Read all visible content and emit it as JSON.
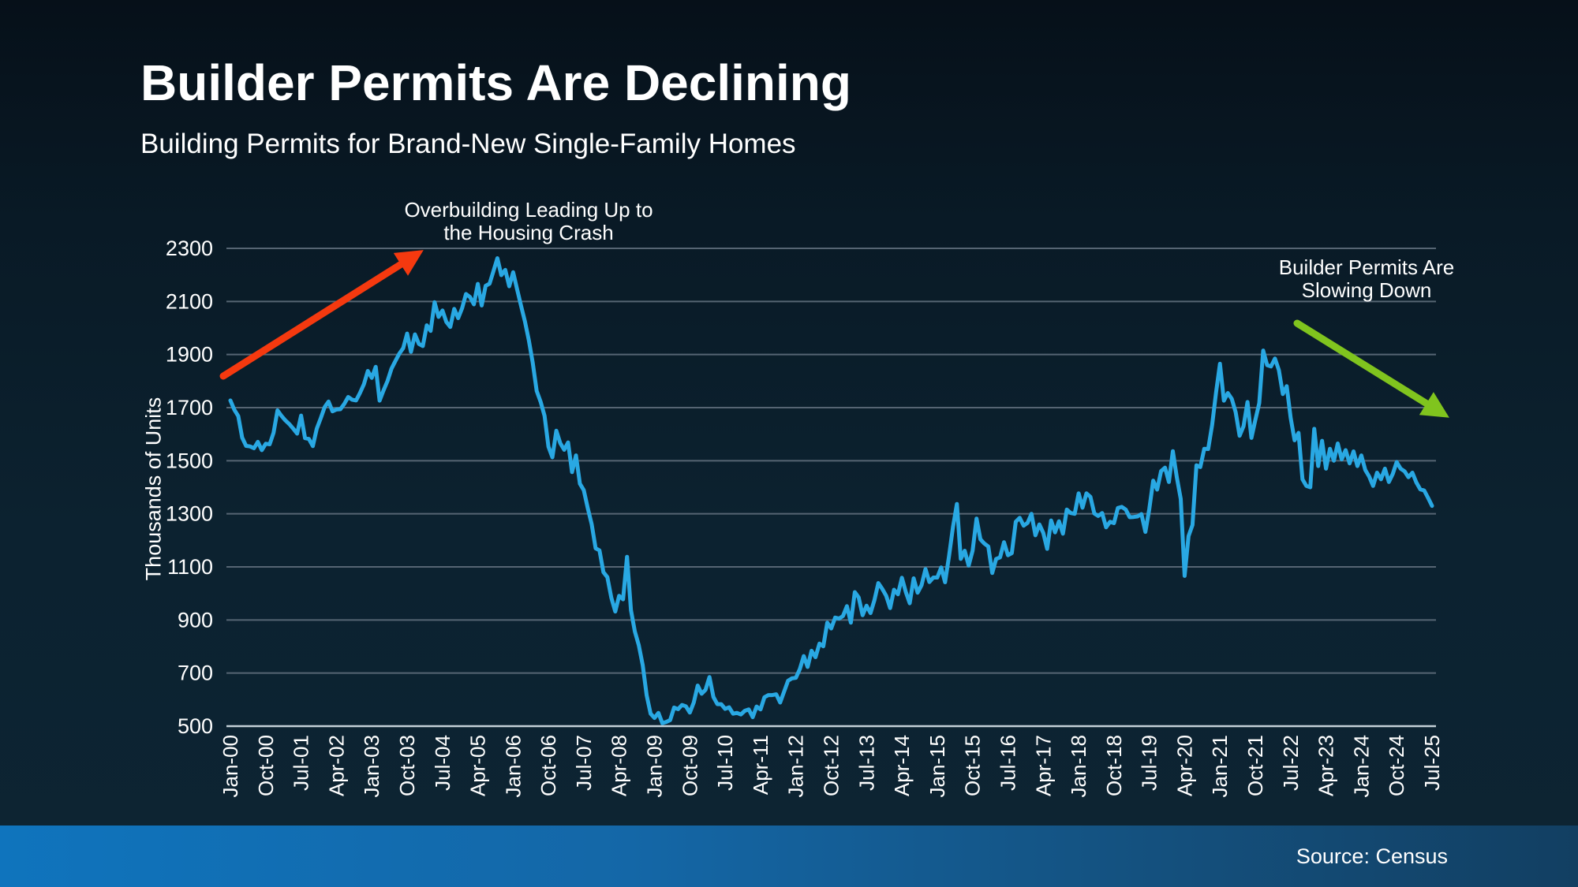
{
  "slide": {
    "title": "Builder Permits Are Declining",
    "subtitle": "Building Permits for Brand-New Single-Family Homes"
  },
  "footer": {
    "source": "Source: Census"
  },
  "annotations": {
    "overbuilding": {
      "line1": "Overbuilding Leading Up to",
      "line2": "the Housing Crash",
      "arrow_color": "#f5390f",
      "arrow_direction": "up-right"
    },
    "slowing": {
      "line1": "Builder Permits Are",
      "line2": "Slowing Down",
      "arrow_color": "#80c41e",
      "arrow_direction": "down-right"
    }
  },
  "colors": {
    "line": "#29a8e3",
    "grid": "#566573",
    "axis_baseline": "#c4d0d8",
    "text": "#ffffff",
    "background_top": "#061019",
    "background_bottom": "#0d2433",
    "footer_gradient_left": "#0f74bd",
    "footer_gradient_right": "#123f62"
  },
  "chart_data": {
    "type": "line",
    "ylabel": "Thousands of Units",
    "ylim": [
      500,
      2300
    ],
    "y_ticks": [
      500,
      700,
      900,
      1100,
      1300,
      1500,
      1700,
      1900,
      2100,
      2300
    ],
    "x_tick_labels": [
      "Jan-00",
      "Oct-00",
      "Jul-01",
      "Apr-02",
      "Jan-03",
      "Oct-03",
      "Jul-04",
      "Apr-05",
      "Jan-06",
      "Oct-06",
      "Jul-07",
      "Apr-08",
      "Jan-09",
      "Oct-09",
      "Jul-10",
      "Apr-11",
      "Jan-12",
      "Oct-12",
      "Jul-13",
      "Apr-14",
      "Jan-15",
      "Oct-15",
      "Jul-16",
      "Apr-17",
      "Jan-18",
      "Oct-18",
      "Jul-19",
      "Apr-20",
      "Jan-21",
      "Oct-21",
      "Jul-22",
      "Apr-23",
      "Jan-24",
      "Oct-24",
      "Jul-25"
    ],
    "x_tick_interval_months": 9,
    "grid": true,
    "series": [
      {
        "name": "Building Permits",
        "start": "Jan-00",
        "end": "Jul-25",
        "frequency": "monthly",
        "values": [
          1727,
          1692,
          1668,
          1587,
          1556,
          1554,
          1547,
          1571,
          1540,
          1564,
          1562,
          1605,
          1690,
          1669,
          1652,
          1638,
          1621,
          1602,
          1670,
          1585,
          1582,
          1555,
          1621,
          1660,
          1702,
          1723,
          1686,
          1693,
          1694,
          1714,
          1740,
          1730,
          1727,
          1755,
          1788,
          1838,
          1812,
          1854,
          1726,
          1765,
          1800,
          1846,
          1875,
          1903,
          1924,
          1979,
          1910,
          1976,
          1940,
          1932,
          2010,
          1989,
          2097,
          2042,
          2066,
          2023,
          2004,
          2072,
          2037,
          2075,
          2128,
          2117,
          2089,
          2166,
          2085,
          2159,
          2167,
          2215,
          2263,
          2199,
          2219,
          2157,
          2210,
          2147,
          2085,
          2025,
          1953,
          1869,
          1763,
          1722,
          1669,
          1553,
          1513,
          1613,
          1566,
          1541,
          1569,
          1457,
          1520,
          1413,
          1389,
          1322,
          1261,
          1170,
          1162,
          1080,
          1061,
          984,
          932,
          991,
          978,
          1138,
          937,
          857,
          805,
          730,
          616,
          547,
          531,
          550,
          511,
          516,
          523,
          570,
          564,
          580,
          575,
          551,
          589,
          653,
          622,
          637,
          685,
          610,
          583,
          583,
          565,
          571,
          547,
          550,
          544,
          558,
          563,
          534,
          574,
          563,
          609,
          617,
          617,
          620,
          589,
          630,
          671,
          680,
          682,
          715,
          764,
          723,
          784,
          760,
          811,
          801,
          890,
          868,
          909,
          905,
          915,
          952,
          890,
          1005,
          985,
          918,
          954,
          926,
          974,
          1039,
          1017,
          991,
          945,
          1014,
          997,
          1059,
          1005,
          963,
          1057,
          1003,
          1031,
          1092,
          1043,
          1060,
          1060,
          1098,
          1042,
          1140,
          1250,
          1337,
          1130,
          1161,
          1105,
          1161,
          1282,
          1204,
          1188,
          1177,
          1077,
          1130,
          1136,
          1193,
          1144,
          1152,
          1270,
          1285,
          1255,
          1266,
          1300,
          1219,
          1260,
          1228,
          1168,
          1275,
          1230,
          1272,
          1225,
          1316,
          1303,
          1300,
          1377,
          1323,
          1377,
          1364,
          1301,
          1292,
          1303,
          1249,
          1270,
          1265,
          1322,
          1326,
          1316,
          1287,
          1288,
          1290,
          1299,
          1232,
          1317,
          1425,
          1391,
          1461,
          1474,
          1420,
          1536,
          1438,
          1356,
          1066,
          1216,
          1258,
          1483,
          1476,
          1545,
          1544,
          1635,
          1758,
          1865,
          1726,
          1755,
          1733,
          1683,
          1594,
          1630,
          1721,
          1586,
          1653,
          1717,
          1915,
          1860,
          1855,
          1885,
          1841,
          1751,
          1781,
          1662,
          1577,
          1605,
          1430,
          1405,
          1400,
          1620,
          1480,
          1575,
          1470,
          1545,
          1500,
          1565,
          1505,
          1540,
          1490,
          1535,
          1480,
          1520,
          1465,
          1440,
          1405,
          1455,
          1430,
          1470,
          1420,
          1450,
          1495,
          1470,
          1460,
          1438,
          1455,
          1418,
          1392,
          1388,
          1360,
          1330
        ]
      }
    ]
  }
}
